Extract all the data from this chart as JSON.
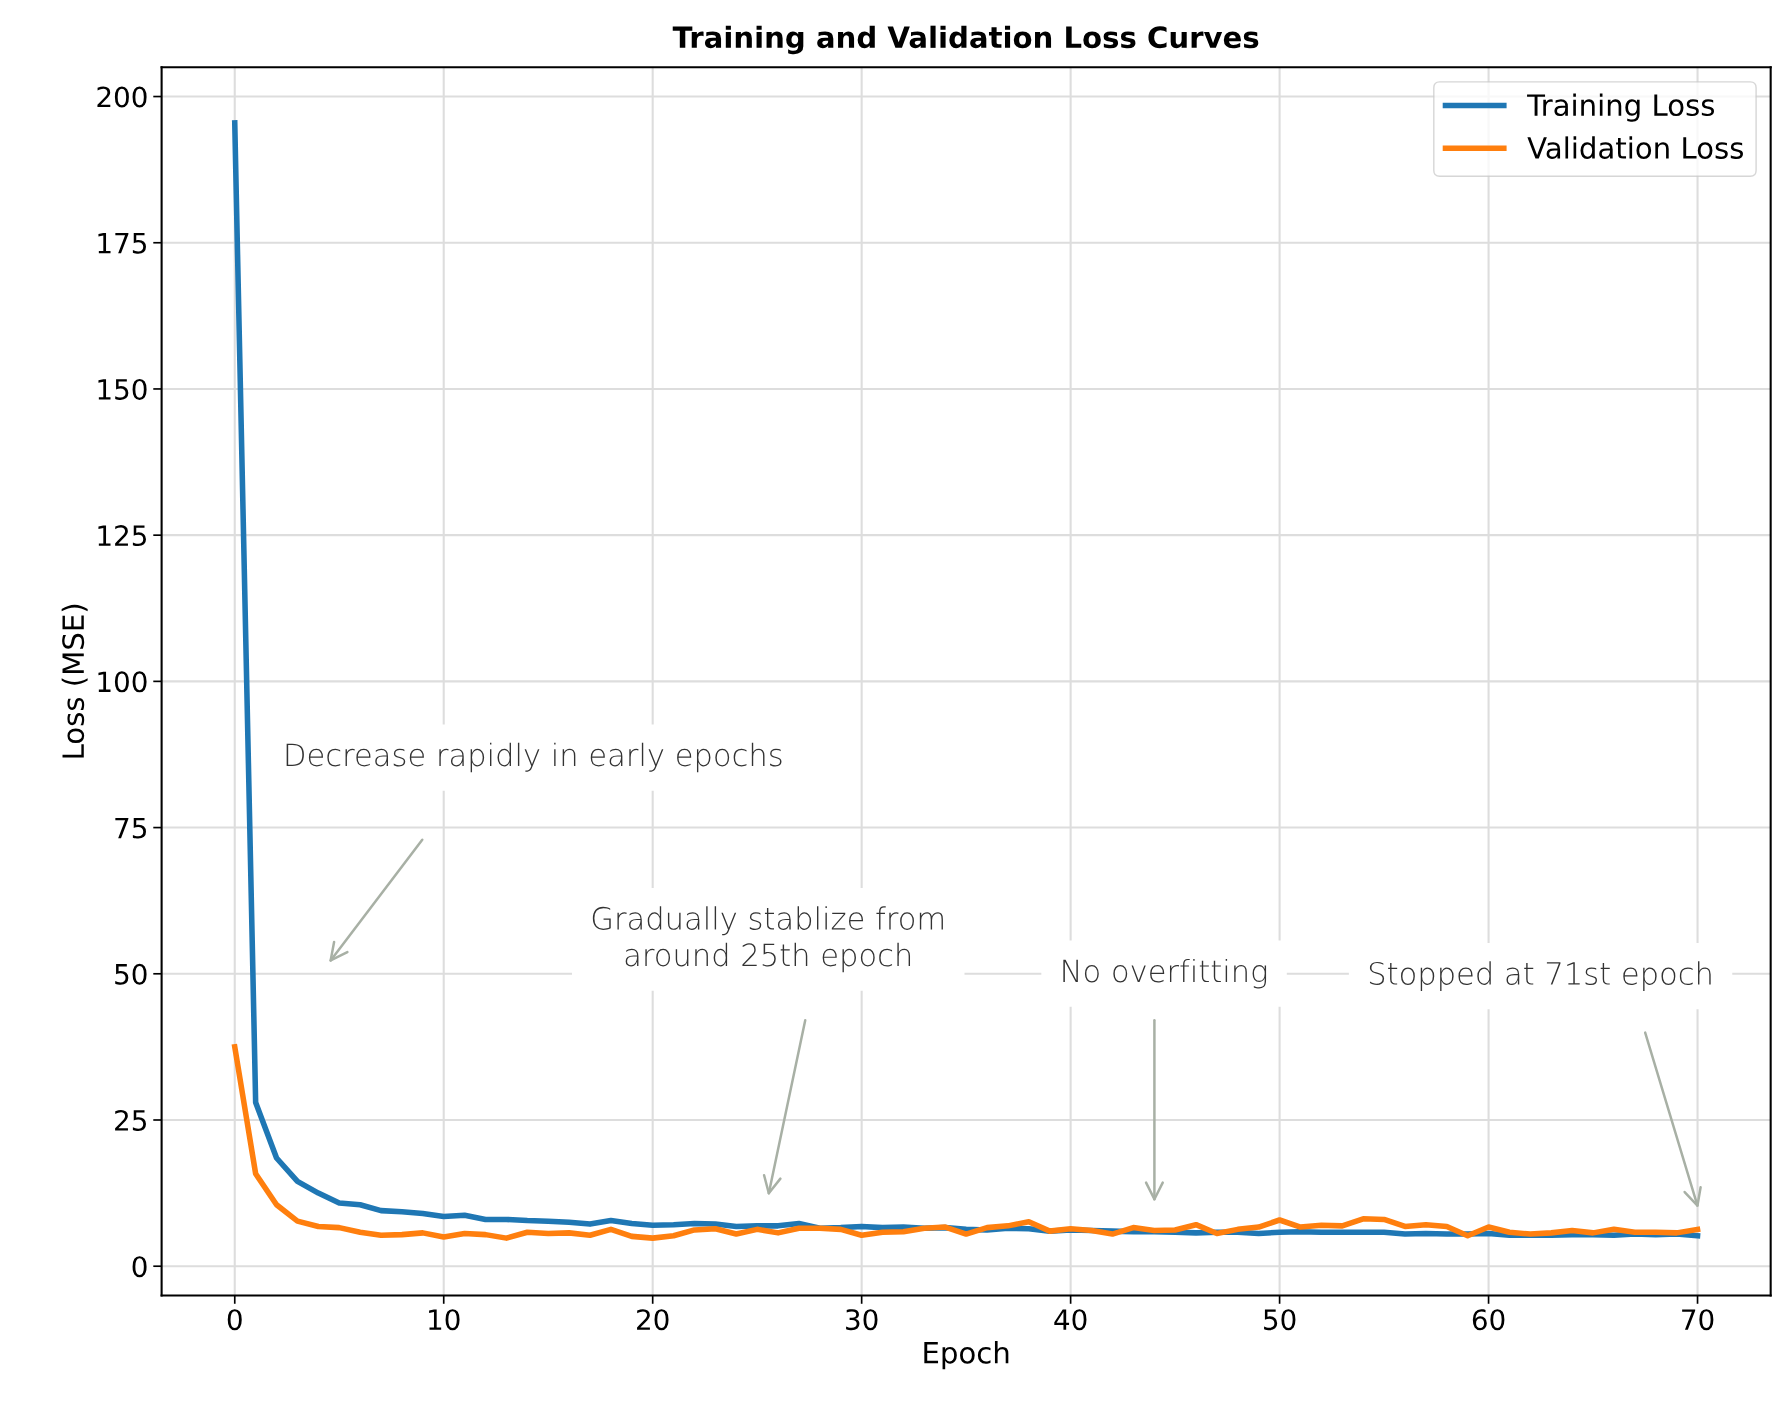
{
  "chart_data": {
    "type": "line",
    "title": "Training and Validation Loss Curves",
    "xlabel": "Epoch",
    "ylabel": "Loss (MSE)",
    "x": [
      0,
      1,
      2,
      3,
      4,
      5,
      6,
      7,
      8,
      9,
      10,
      11,
      12,
      13,
      14,
      15,
      16,
      17,
      18,
      19,
      20,
      21,
      22,
      23,
      24,
      25,
      26,
      27,
      28,
      29,
      30,
      31,
      32,
      33,
      34,
      35,
      36,
      37,
      38,
      39,
      40,
      41,
      42,
      43,
      44,
      45,
      46,
      47,
      48,
      49,
      50,
      51,
      52,
      53,
      54,
      55,
      56,
      57,
      58,
      59,
      60,
      61,
      62,
      63,
      64,
      65,
      66,
      67,
      68,
      69,
      70
    ],
    "series": [
      {
        "name": "Training Loss",
        "color": "#1f77b4",
        "values": [
          195.5,
          28,
          18.5,
          14.5,
          12.5,
          10.8,
          10.5,
          9.5,
          9.3,
          9.0,
          8.5,
          8.7,
          8.0,
          8.0,
          7.8,
          7.7,
          7.5,
          7.2,
          7.8,
          7.3,
          7.0,
          7.1,
          7.3,
          7.2,
          6.8,
          6.9,
          6.9,
          7.3,
          6.5,
          6.6,
          6.8,
          6.6,
          6.7,
          6.5,
          6.6,
          6.3,
          6.2,
          6.5,
          6.4,
          6.0,
          6.2,
          6.1,
          6.0,
          5.9,
          5.9,
          5.8,
          5.7,
          5.8,
          5.8,
          5.6,
          5.8,
          5.9,
          5.8,
          5.8,
          5.8,
          5.8,
          5.5,
          5.6,
          5.5,
          5.5,
          5.6,
          5.3,
          5.3,
          5.3,
          5.4,
          5.4,
          5.3,
          5.5,
          5.4,
          5.5,
          5.2
        ]
      },
      {
        "name": "Validation Loss",
        "color": "#ff7f0e",
        "values": [
          37.5,
          15.8,
          10.5,
          7.7,
          6.8,
          6.6,
          5.8,
          5.3,
          5.4,
          5.7,
          5.0,
          5.6,
          5.4,
          4.8,
          5.8,
          5.6,
          5.7,
          5.3,
          6.3,
          5.1,
          4.8,
          5.2,
          6.2,
          6.4,
          5.5,
          6.3,
          5.7,
          6.5,
          6.5,
          6.3,
          5.3,
          5.8,
          5.9,
          6.5,
          6.7,
          5.5,
          6.6,
          6.9,
          7.6,
          6.0,
          6.4,
          6.1,
          5.5,
          6.6,
          6.1,
          6.2,
          7.1,
          5.6,
          6.3,
          6.7,
          7.9,
          6.7,
          7.0,
          6.9,
          8.1,
          8.0,
          6.8,
          7.1,
          6.8,
          5.2,
          6.7,
          5.8,
          5.5,
          5.7,
          6.1,
          5.7,
          6.3,
          5.8,
          5.8,
          5.7,
          6.3
        ]
      }
    ],
    "xlim": [
      -3.5,
      73.5
    ],
    "ylim": [
      -5,
      205
    ],
    "xticks": [
      0,
      10,
      20,
      30,
      40,
      50,
      60,
      70
    ],
    "yticks": [
      0,
      25,
      50,
      75,
      100,
      125,
      150,
      175,
      200
    ],
    "grid": true,
    "legend": "top right",
    "line_style": "solid",
    "marker": "none",
    "annotations": [
      "Decrease rapidly in early epochs",
      "Gradually stablize from\naround 25th epoch",
      "No overfitting",
      "Stopped at 71st epoch"
    ]
  }
}
